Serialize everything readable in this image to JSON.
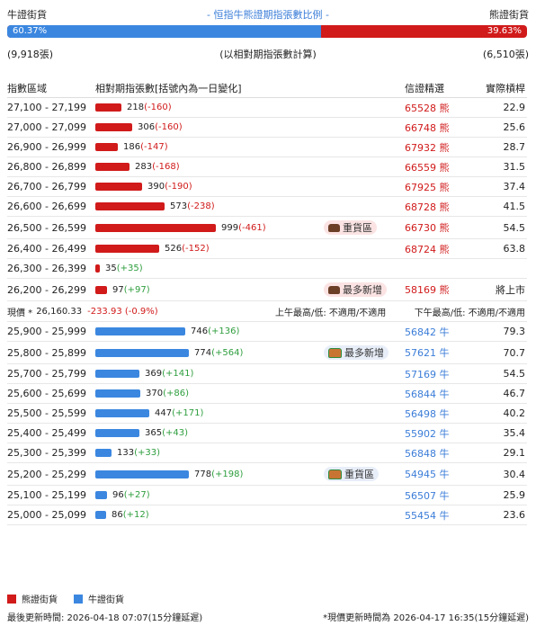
{
  "header": {
    "bull_label": "牛證街貨",
    "title": "- 恒指牛熊證期指張數比例 -",
    "bear_label": "熊證街貨",
    "bull_pct": "60.37%",
    "bear_pct": "39.63%",
    "bull_fraction": 0.6037,
    "bull_count": "(9,918張)",
    "basis": "(以相對期指張數計算)",
    "bear_count": "(6,510張)"
  },
  "columns": {
    "range": "指數區域",
    "contracts": "相對期指張數[括號內為一日變化]",
    "code": "信證精選",
    "leverage": "實際槓桿"
  },
  "bear_rows": [
    {
      "range": "27,100 - 27,199",
      "value": 218,
      "count": "218",
      "change": "(-160)",
      "code": "65528 熊",
      "leverage": "22.9"
    },
    {
      "range": "27,000 - 27,099",
      "value": 306,
      "count": "306",
      "change": "(-160)",
      "code": "66748 熊",
      "leverage": "25.6"
    },
    {
      "range": "26,900 - 26,999",
      "value": 186,
      "count": "186",
      "change": "(-147)",
      "code": "67932 熊",
      "leverage": "28.7"
    },
    {
      "range": "26,800 - 26,899",
      "value": 283,
      "count": "283",
      "change": "(-168)",
      "code": "66559 熊",
      "leverage": "31.5"
    },
    {
      "range": "26,700 - 26,799",
      "value": 390,
      "count": "390",
      "change": "(-190)",
      "code": "67925 熊",
      "leverage": "37.4"
    },
    {
      "range": "26,600 - 26,699",
      "value": 573,
      "count": "573",
      "change": "(-238)",
      "code": "68728 熊",
      "leverage": "41.5"
    },
    {
      "range": "26,500 - 26,599",
      "value": 999,
      "count": "999",
      "change": "(-461)",
      "code": "66730 熊",
      "leverage": "54.5",
      "badge": "重貨區"
    },
    {
      "range": "26,400 - 26,499",
      "value": 526,
      "count": "526",
      "change": "(-152)",
      "code": "68724 熊",
      "leverage": "63.8"
    },
    {
      "range": "26,300 - 26,399",
      "value": 35,
      "count": "35",
      "change": "(+35)",
      "code": "",
      "leverage": ""
    },
    {
      "range": "26,200 - 26,299",
      "value": 97,
      "count": "97",
      "change": "(+97)",
      "code": "58169 熊",
      "leverage": "將上市",
      "badge": "最多新增"
    }
  ],
  "price": {
    "label": "現價 *",
    "value": "26,160.33",
    "change": "-233.93 (-0.9%)",
    "am": "上午最高/低: 不適用/不適用",
    "pm": "下午最高/低: 不適用/不適用"
  },
  "bull_rows": [
    {
      "range": "25,900 - 25,999",
      "value": 746,
      "count": "746",
      "change": "(+136)",
      "code": "56842 牛",
      "leverage": "79.3"
    },
    {
      "range": "25,800 - 25,899",
      "value": 774,
      "count": "774",
      "change": "(+564)",
      "code": "57621 牛",
      "leverage": "70.7",
      "badge": "最多新增"
    },
    {
      "range": "25,700 - 25,799",
      "value": 369,
      "count": "369",
      "change": "(+141)",
      "code": "57169 牛",
      "leverage": "54.5"
    },
    {
      "range": "25,600 - 25,699",
      "value": 370,
      "count": "370",
      "change": "(+86)",
      "code": "56844 牛",
      "leverage": "46.7"
    },
    {
      "range": "25,500 - 25,599",
      "value": 447,
      "count": "447",
      "change": "(+171)",
      "code": "56498 牛",
      "leverage": "40.2"
    },
    {
      "range": "25,400 - 25,499",
      "value": 365,
      "count": "365",
      "change": "(+43)",
      "code": "55902 牛",
      "leverage": "35.4"
    },
    {
      "range": "25,300 - 25,399",
      "value": 133,
      "count": "133",
      "change": "(+33)",
      "code": "56848 牛",
      "leverage": "29.1"
    },
    {
      "range": "25,200 - 25,299",
      "value": 778,
      "count": "778",
      "change": "(+198)",
      "code": "54945 牛",
      "leverage": "30.4",
      "badge": "重貨區"
    },
    {
      "range": "25,100 - 25,199",
      "value": 96,
      "count": "96",
      "change": "(+27)",
      "code": "56507 牛",
      "leverage": "25.9"
    },
    {
      "range": "25,000 - 25,099",
      "value": 86,
      "count": "86",
      "change": "(+12)",
      "code": "55454 牛",
      "leverage": "23.6"
    }
  ],
  "legend": {
    "bear": "熊證街貨",
    "bull": "牛證街貨"
  },
  "colors": {
    "bear": "#d11a1a",
    "bull": "#3b87e0",
    "up": "#2e9e3e"
  },
  "footer": {
    "updated": "最後更新時間: 2026-04-18 07:07(15分鐘延遲)",
    "price_updated": "*現價更新時間為 2026-04-17 16:35(15分鐘延遲)"
  }
}
